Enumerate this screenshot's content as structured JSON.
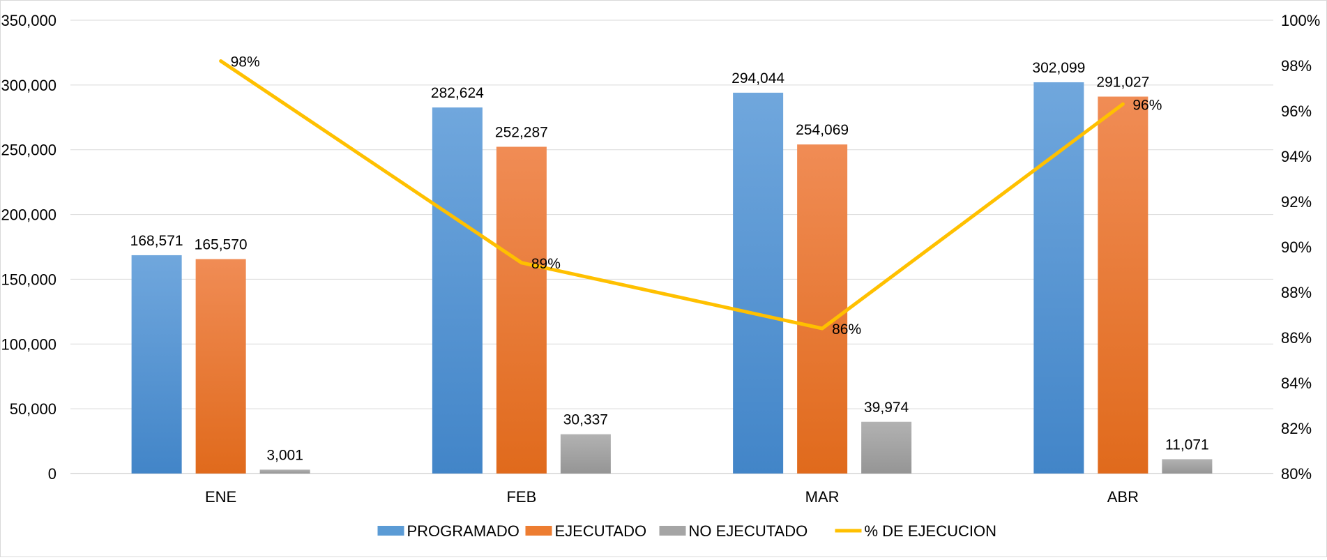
{
  "chart_data": {
    "type": "bar",
    "combo": "bar-line",
    "categories": [
      "ENE",
      "FEB",
      "MAR",
      "ABR"
    ],
    "series": [
      {
        "name": "PROGRAMADO",
        "kind": "bar",
        "axis": "left",
        "color": "#5b9bd5",
        "values": [
          168571,
          282624,
          294044,
          302099
        ],
        "labels": [
          "168,571",
          "282,624",
          "294,044",
          "302,099"
        ]
      },
      {
        "name": "EJECUTADO",
        "kind": "bar",
        "axis": "left",
        "color": "#ed7d31",
        "values": [
          165570,
          252287,
          254069,
          291027
        ],
        "labels": [
          "165,570",
          "252,287",
          "254,069",
          "291,027"
        ]
      },
      {
        "name": "NO EJECUTADO",
        "kind": "bar",
        "axis": "left",
        "color": "#a5a5a5",
        "values": [
          3001,
          30337,
          39974,
          11071
        ],
        "labels": [
          "3,001",
          "30,337",
          "39,974",
          "11,071"
        ]
      },
      {
        "name": "% DE EJECUCION",
        "kind": "line",
        "axis": "right",
        "color": "#ffc000",
        "values": [
          98.2,
          89.3,
          86.4,
          96.3
        ],
        "labels": [
          "98%",
          "89%",
          "86%",
          "96%"
        ]
      }
    ],
    "y_left": {
      "min": 0,
      "max": 350000,
      "ticks": [
        0,
        50000,
        100000,
        150000,
        200000,
        250000,
        300000,
        350000
      ],
      "tick_labels": [
        "0",
        "50,000",
        "100,000",
        "150,000",
        "200,000",
        "250,000",
        "300,000",
        "350,000"
      ]
    },
    "y_right": {
      "min": 80,
      "max": 100,
      "ticks": [
        80,
        82,
        84,
        86,
        88,
        90,
        92,
        94,
        96,
        98,
        100
      ],
      "tick_labels": [
        "80%",
        "82%",
        "84%",
        "86%",
        "88%",
        "90%",
        "92%",
        "94%",
        "96%",
        "98%",
        "100%"
      ]
    },
    "grid": true,
    "legend_position": "bottom-center",
    "title": "",
    "xlabel": "",
    "ylabel": ""
  }
}
